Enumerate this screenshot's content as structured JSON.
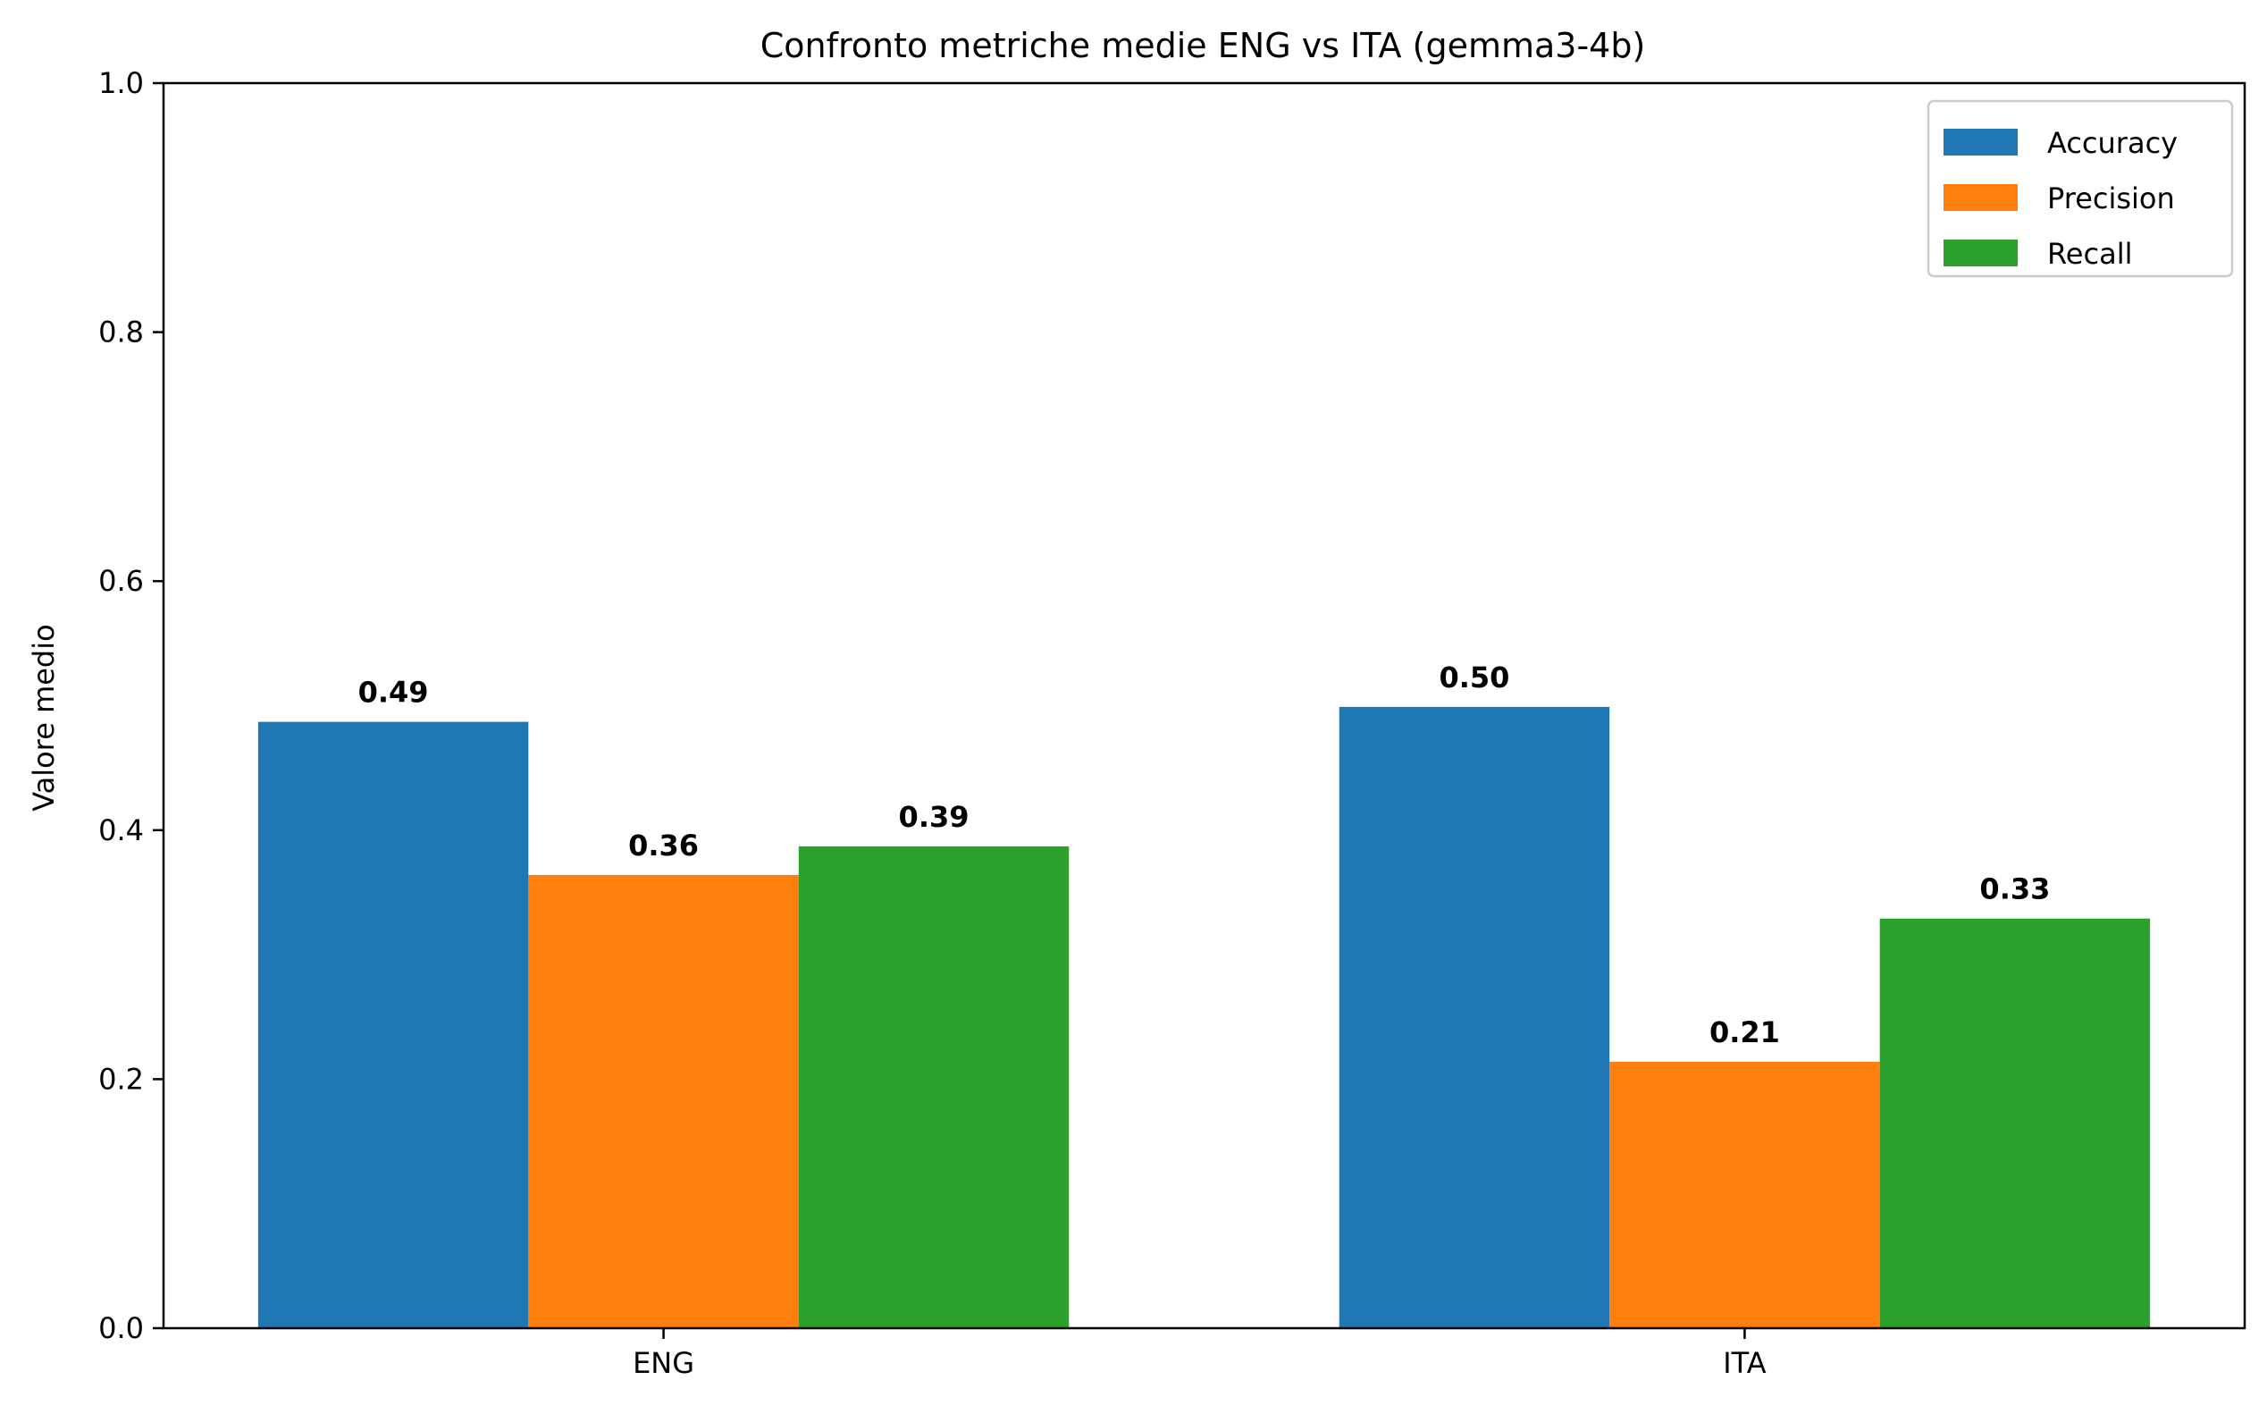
{
  "chart_data": {
    "type": "bar",
    "title": "Confronto metriche medie ENG vs ITA (gemma3-4b)",
    "xlabel": "",
    "ylabel": "Valore medio",
    "ylim": [
      0,
      1.0
    ],
    "yticks": [
      0.0,
      0.2,
      0.4,
      0.6,
      0.8,
      1.0
    ],
    "ytick_labels": [
      "0.0",
      "0.2",
      "0.4",
      "0.6",
      "0.8",
      "1.0"
    ],
    "categories": [
      "ENG",
      "ITA"
    ],
    "series": [
      {
        "name": "Accuracy",
        "color": "#1f77b4",
        "values": [
          0.487,
          0.499
        ],
        "labels": [
          "0.49",
          "0.50"
        ]
      },
      {
        "name": "Precision",
        "color": "#ff7f0e",
        "values": [
          0.364,
          0.214
        ],
        "labels": [
          "0.36",
          "0.21"
        ]
      },
      {
        "name": "Recall",
        "color": "#2ca02c",
        "values": [
          0.387,
          0.329
        ],
        "labels": [
          "0.39",
          "0.33"
        ]
      }
    ],
    "grid": false,
    "legend_position": "top-right"
  }
}
